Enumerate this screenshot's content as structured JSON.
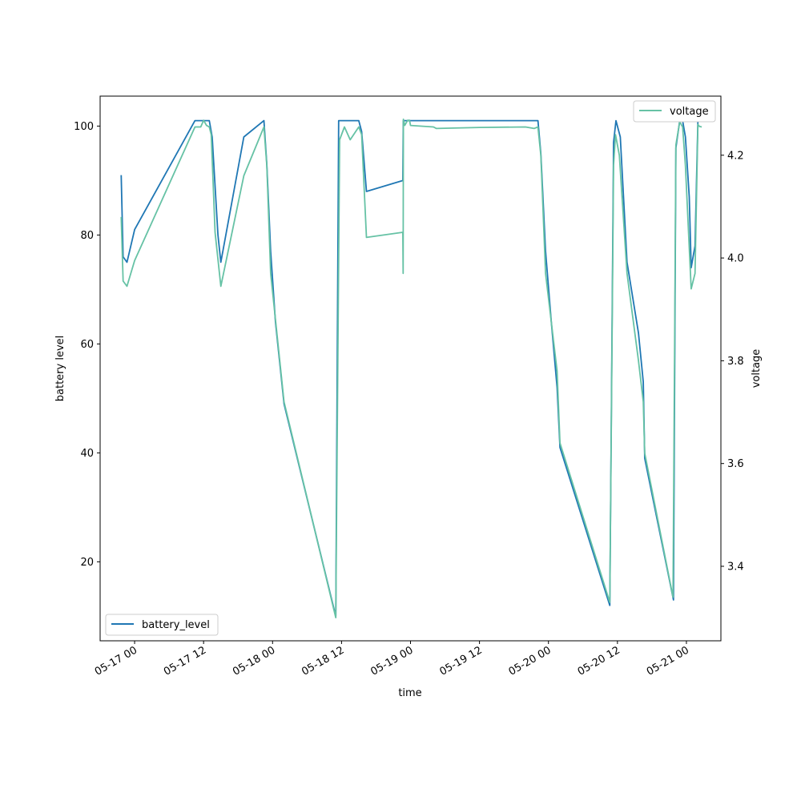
{
  "chart_data": {
    "type": "line",
    "xlabel": "time",
    "ylabel_left": "battery level",
    "ylabel_right": "voltage",
    "x_ticks": [
      "05-17 00",
      "05-17 12",
      "05-18 00",
      "05-18 12",
      "05-19 00",
      "05-19 12",
      "05-20 00",
      "05-20 12",
      "05-21 00"
    ],
    "y_left_ticks": [
      20,
      40,
      60,
      80,
      100
    ],
    "y_right_ticks": [
      "3.4",
      "3.6",
      "3.8",
      "4.0",
      "4.2"
    ],
    "xlim": [
      "05-16 18:00",
      "05-21 06:00"
    ],
    "ylim_left": [
      5.5,
      105.5
    ],
    "ylim_right": [
      3.255,
      4.315
    ],
    "legend_left_position": "lower-left",
    "legend_right_position": "upper-right",
    "grid": false,
    "series": [
      {
        "name": "battery_level",
        "axis": "left",
        "color": "#1f77b4",
        "points": [
          [
            "05-16 21:40",
            91
          ],
          [
            "05-16 22:00",
            76
          ],
          [
            "05-16 22:40",
            75
          ],
          [
            "05-17 00:00",
            81
          ],
          [
            "05-17 10:30",
            101
          ],
          [
            "05-17 12:00",
            101
          ],
          [
            "05-17 13:00",
            101
          ],
          [
            "05-17 13:30",
            98
          ],
          [
            "05-17 14:30",
            80
          ],
          [
            "05-17 15:00",
            75
          ],
          [
            "05-17 19:00",
            98
          ],
          [
            "05-17 22:30",
            101
          ],
          [
            "05-17 23:00",
            93
          ],
          [
            "05-17 23:40",
            77
          ],
          [
            "05-18 00:30",
            64
          ],
          [
            "05-18 02:00",
            49
          ],
          [
            "05-18 11:00",
            10
          ],
          [
            "05-18 11:30",
            101
          ],
          [
            "05-18 15:00",
            101
          ],
          [
            "05-18 15:30",
            99
          ],
          [
            "05-18 16:20",
            88
          ],
          [
            "05-18 22:40",
            90
          ],
          [
            "05-18 22:45",
            101
          ],
          [
            "05-19 00:00",
            101
          ],
          [
            "05-19 08:00",
            101
          ],
          [
            "05-19 16:00",
            101
          ],
          [
            "05-19 22:10",
            101
          ],
          [
            "05-19 22:40",
            95
          ],
          [
            "05-19 23:30",
            77
          ],
          [
            "05-20 00:30",
            64
          ],
          [
            "05-20 01:30",
            52
          ],
          [
            "05-20 02:00",
            41
          ],
          [
            "05-20 10:40",
            12
          ],
          [
            "05-20 11:20",
            97
          ],
          [
            "05-20 11:45",
            101
          ],
          [
            "05-20 12:30",
            98
          ],
          [
            "05-20 13:40",
            75
          ],
          [
            "05-20 15:40",
            62
          ],
          [
            "05-20 16:30",
            53
          ],
          [
            "05-20 16:45",
            39
          ],
          [
            "05-20 21:45",
            13
          ],
          [
            "05-20 22:10",
            96
          ],
          [
            "05-20 22:50",
            101
          ],
          [
            "05-20 23:20",
            101
          ],
          [
            "05-20 23:50",
            98
          ],
          [
            "05-21 00:30",
            87
          ],
          [
            "05-21 00:50",
            74
          ],
          [
            "05-21 01:30",
            78
          ],
          [
            "05-21 02:00",
            101
          ],
          [
            "05-21 02:15",
            101
          ],
          [
            "05-21 02:40",
            101
          ]
        ]
      },
      {
        "name": "voltage",
        "axis": "right",
        "color": "#66c2a5",
        "points": [
          [
            "05-16 21:40",
            4.08
          ],
          [
            "05-16 22:00",
            3.955
          ],
          [
            "05-16 22:40",
            3.945
          ],
          [
            "05-17 00:00",
            3.995
          ],
          [
            "05-17 10:30",
            4.255
          ],
          [
            "05-17 11:30",
            4.255
          ],
          [
            "05-17 12:00",
            4.268
          ],
          [
            "05-17 12:30",
            4.258
          ],
          [
            "05-17 13:00",
            4.255
          ],
          [
            "05-17 13:20",
            4.24
          ],
          [
            "05-17 14:00",
            4.05
          ],
          [
            "05-17 15:00",
            3.945
          ],
          [
            "05-17 19:00",
            4.16
          ],
          [
            "05-17 22:30",
            4.255
          ],
          [
            "05-17 23:00",
            4.18
          ],
          [
            "05-17 23:40",
            3.97
          ],
          [
            "05-18 02:00",
            3.72
          ],
          [
            "05-18 11:00",
            3.3
          ],
          [
            "05-18 11:40",
            4.23
          ],
          [
            "05-18 12:30",
            4.255
          ],
          [
            "05-18 13:30",
            4.23
          ],
          [
            "05-18 15:00",
            4.255
          ],
          [
            "05-18 15:30",
            4.24
          ],
          [
            "05-18 16:20",
            4.04
          ],
          [
            "05-18 22:40",
            4.05
          ],
          [
            "05-18 22:43",
            3.97
          ],
          [
            "05-18 22:46",
            4.27
          ],
          [
            "05-18 23:00",
            4.258
          ],
          [
            "05-18 23:30",
            4.268
          ],
          [
            "05-18 23:50",
            4.268
          ],
          [
            "05-19 00:00",
            4.258
          ],
          [
            "05-19 04:00",
            4.255
          ],
          [
            "05-19 04:30",
            4.252
          ],
          [
            "05-19 12:00",
            4.254
          ],
          [
            "05-19 20:00",
            4.255
          ],
          [
            "05-19 21:30",
            4.252
          ],
          [
            "05-19 22:10",
            4.255
          ],
          [
            "05-19 22:40",
            4.2
          ],
          [
            "05-19 23:30",
            3.97
          ],
          [
            "05-20 01:30",
            3.78
          ],
          [
            "05-20 02:00",
            3.64
          ],
          [
            "05-20 10:40",
            3.33
          ],
          [
            "05-20 11:20",
            4.18
          ],
          [
            "05-20 11:40",
            4.24
          ],
          [
            "05-20 12:20",
            4.2
          ],
          [
            "05-20 13:40",
            3.97
          ],
          [
            "05-20 15:40",
            3.8
          ],
          [
            "05-20 16:30",
            3.72
          ],
          [
            "05-20 16:45",
            3.62
          ],
          [
            "05-20 21:40",
            3.34
          ],
          [
            "05-20 22:10",
            4.22
          ],
          [
            "05-20 22:50",
            4.265
          ],
          [
            "05-20 23:20",
            4.255
          ],
          [
            "05-20 23:50",
            4.18
          ],
          [
            "05-21 00:50",
            3.94
          ],
          [
            "05-21 01:30",
            3.97
          ],
          [
            "05-21 02:00",
            4.26
          ],
          [
            "05-21 02:15",
            4.256
          ],
          [
            "05-21 02:40",
            4.255
          ]
        ]
      }
    ]
  }
}
